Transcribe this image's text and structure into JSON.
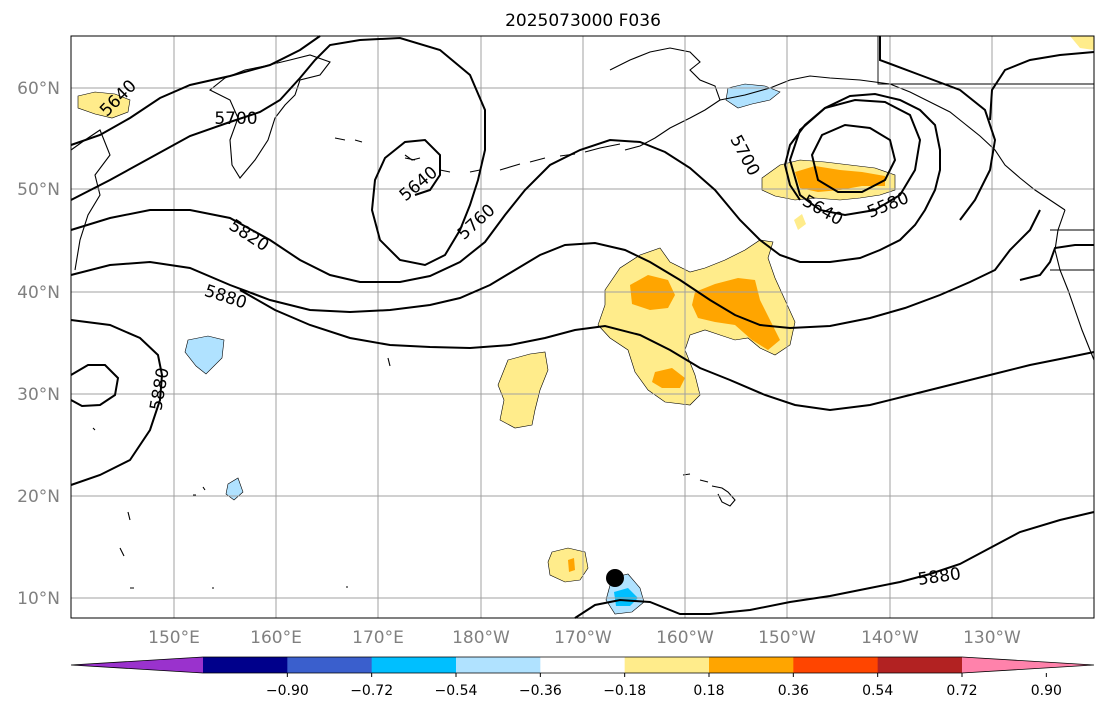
{
  "figure": {
    "title": "2025073000 F036"
  },
  "map": {
    "lat_labels": [
      "60°N",
      "50°N",
      "40°N",
      "30°N",
      "20°N",
      "10°N"
    ],
    "lon_labels": [
      "150°E",
      "160°E",
      "170°E",
      "180°W",
      "170°W",
      "160°W",
      "150°W",
      "140°W",
      "130°W"
    ],
    "lon_range_deg_east": [
      140,
      240
    ],
    "lat_range": [
      8,
      65
    ],
    "grid": true,
    "contour_labels": [
      {
        "text": "5640"
      },
      {
        "text": "5700"
      },
      {
        "text": "5640"
      },
      {
        "text": "5760"
      },
      {
        "text": "5820"
      },
      {
        "text": "5880"
      },
      {
        "text": "5880"
      },
      {
        "text": "5700"
      },
      {
        "text": "5640"
      },
      {
        "text": "5580"
      },
      {
        "text": "5880"
      }
    ],
    "marker": {
      "lat": 12,
      "lon_deg_east": 193.5,
      "color": "#000000"
    }
  },
  "colorbar": {
    "ticks": [
      "−0.90",
      "−0.72",
      "−0.54",
      "−0.36",
      "−0.18",
      "0.18",
      "0.36",
      "0.54",
      "0.72",
      "0.90"
    ],
    "colors": [
      "#9a32cd",
      "#00008b",
      "#3a5fcd",
      "#00bfff",
      "#b0e2ff",
      "#ffffff",
      "#ffec8b",
      "#ffa500",
      "#ff4500",
      "#b22222",
      "#ff82ab"
    ],
    "extend": "both"
  },
  "shading_colors": {
    "pos_light": "#ffec8b",
    "pos_mid": "#ffa500",
    "neg_light": "#b0e2ff",
    "neg_mid": "#00bfff"
  }
}
